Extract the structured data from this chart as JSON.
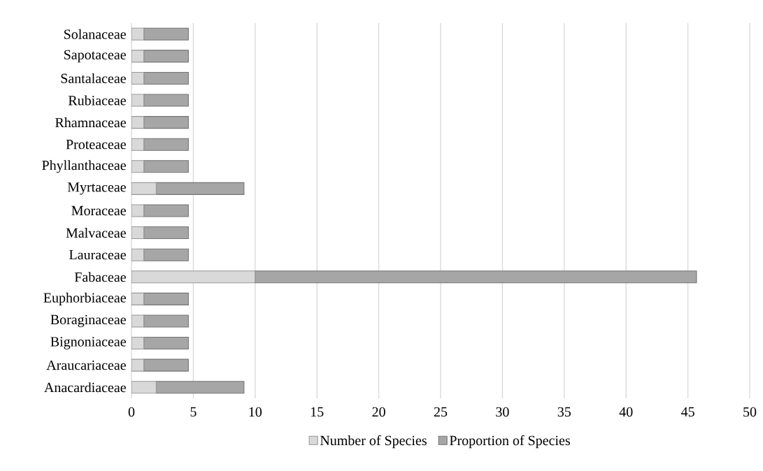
{
  "chart_data": {
    "type": "bar",
    "orientation": "horizontal",
    "stacked": true,
    "categories": [
      "Solanaceae",
      "Sapotaceae",
      "Santalaceae",
      "Rubiaceae",
      "Rhamnaceae",
      "Proteaceae",
      "Phyllanthaceae",
      "Myrtaceae",
      "Moraceae",
      "Malvaceae",
      "Lauraceae",
      "Fabaceae",
      "Euphorbiaceae",
      "Boraginaceae",
      "Bignoniaceae",
      "Araucariaceae",
      "Anacardiaceae"
    ],
    "series": [
      {
        "name": "Number of Species",
        "color": "#d9d9d9",
        "values": [
          1,
          1,
          1,
          1,
          1,
          1,
          1,
          2,
          1,
          1,
          1,
          10,
          1,
          1,
          1,
          1,
          2
        ]
      },
      {
        "name": "Proportion of Species",
        "color": "#a6a6a6",
        "values": [
          3.6,
          3.6,
          3.6,
          3.6,
          3.6,
          3.6,
          3.6,
          7.1,
          3.6,
          3.6,
          3.6,
          35.7,
          3.6,
          3.6,
          3.6,
          3.6,
          7.1
        ]
      }
    ],
    "xlim": [
      0,
      50
    ],
    "xticks": [
      0,
      5,
      10,
      15,
      20,
      25,
      30,
      35,
      40,
      45,
      50
    ],
    "grid": "x",
    "legend": "bottom"
  }
}
